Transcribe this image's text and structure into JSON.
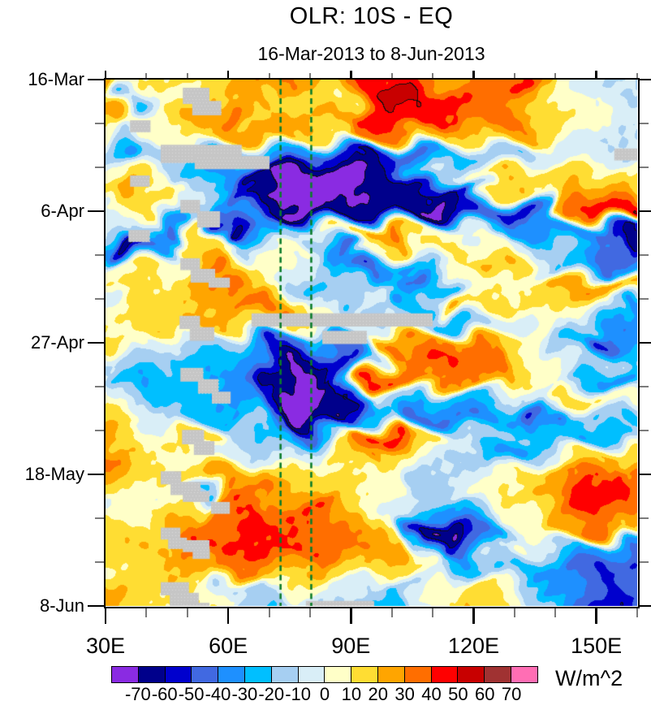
{
  "title": "OLR: 10S - EQ",
  "subtitle": "16-Mar-2013 to 8-Jun-2013",
  "colorbar": {
    "units": "W/m^2",
    "tick_labels": [
      "-70",
      "-60",
      "-50",
      "-40",
      "-30",
      "-20",
      "-10",
      "0",
      "10",
      "20",
      "30",
      "40",
      "50",
      "60",
      "70"
    ],
    "colors": [
      "#8A2BE2",
      "#00008B",
      "#0000CD",
      "#4169E1",
      "#1E90FF",
      "#00BFFF",
      "#A6CFF2",
      "#D9EEF7",
      "#FFFFC8",
      "#FFDD33",
      "#FFA500",
      "#FF6E00",
      "#FF0000",
      "#C80000",
      "#A03232",
      "#FF6EB4"
    ]
  },
  "x_axis": {
    "min": 30,
    "max": 160,
    "minor_step": 10,
    "major_ticks": [
      30,
      60,
      90,
      120,
      150
    ],
    "major_labels": [
      "30E",
      "60E",
      "90E",
      "120E",
      "150E"
    ]
  },
  "y_axis": {
    "start_day": 0,
    "end_day": 84,
    "minor_step_days": 7,
    "major_ticks_days": [
      0,
      21,
      42,
      63,
      84
    ],
    "major_labels": [
      "16-Mar",
      "6-Apr",
      "27-Apr",
      "18-May",
      "8-Jun"
    ]
  },
  "reference_lines": {
    "color": "#0B7D2B",
    "longitudes": [
      72.8,
      80.3
    ]
  },
  "missing_data": {
    "color": "#C6C6C6",
    "blocks": [
      [
        48.9,
        1.3,
        6.5,
        2.6
      ],
      [
        51.2,
        3.4,
        7.1,
        2.3
      ],
      [
        36.0,
        6.5,
        5.0,
        1.9
      ],
      [
        43.5,
        10.4,
        19.8,
        2.9
      ],
      [
        51.8,
        12.2,
        18.3,
        2.1
      ],
      [
        154.4,
        11.0,
        5.6,
        1.9
      ],
      [
        36.0,
        15.3,
        4.8,
        1.8
      ],
      [
        48.3,
        19.2,
        4.8,
        2.1
      ],
      [
        52.4,
        21.0,
        5.6,
        2.6
      ],
      [
        35.6,
        24.0,
        5.2,
        1.9
      ],
      [
        48.3,
        28.5,
        4.8,
        1.9
      ],
      [
        50.8,
        30.2,
        6.0,
        2.2
      ],
      [
        55.2,
        31.6,
        5.2,
        1.6
      ],
      [
        65.7,
        37.3,
        44.3,
        2.1
      ],
      [
        48.1,
        37.7,
        5.0,
        2.1
      ],
      [
        50.6,
        39.5,
        6.0,
        2.2
      ],
      [
        83.0,
        40.1,
        10.9,
        2.1
      ],
      [
        48.3,
        46.0,
        5.6,
        2.2
      ],
      [
        52.6,
        47.8,
        5.0,
        2.3
      ],
      [
        56.0,
        49.8,
        4.6,
        1.9
      ],
      [
        48.7,
        55.9,
        5.4,
        2.3
      ],
      [
        51.6,
        57.7,
        5.0,
        2.2
      ],
      [
        43.5,
        62.5,
        5.0,
        2.1
      ],
      [
        45.9,
        64.2,
        7.3,
        2.1
      ],
      [
        48.9,
        65.7,
        6.5,
        1.7
      ],
      [
        55.8,
        67.4,
        4.6,
        1.9
      ],
      [
        43.5,
        71.5,
        4.8,
        1.9
      ],
      [
        45.3,
        73.1,
        4.6,
        1.8
      ],
      [
        48.9,
        73.5,
        6.5,
        1.9
      ],
      [
        51.3,
        74.9,
        4.2,
        1.6
      ],
      [
        43.5,
        80.2,
        6.9,
        2.1
      ],
      [
        45.7,
        81.9,
        7.1,
        2.1
      ],
      [
        48.7,
        83.5,
        6.7,
        1.0
      ],
      [
        79.0,
        83.2,
        16.7,
        1.3
      ]
    ]
  },
  "chart_data": {
    "type": "heatmap",
    "title": "OLR: 10S - EQ",
    "subtitle": "16-Mar-2013 to 8-Jun-2013",
    "units": "W/m^2",
    "x_range_deg_east": [
      30,
      160
    ],
    "y_range": [
      "16-Mar-2013",
      "8-Jun-2013"
    ],
    "contour_levels": [
      -70,
      -60,
      -50,
      -40,
      -30,
      -20,
      -10,
      0,
      10,
      20,
      30,
      40,
      50,
      60,
      70
    ],
    "grid": {
      "cols": 23,
      "rows": 29,
      "lon_start": 30,
      "lon_end": 160,
      "day_start": 0,
      "day_end": 84,
      "values": [
        [
          25,
          15,
          10,
          15,
          15,
          15,
          25,
          32,
          25,
          15,
          25,
          45,
          42,
          30,
          25,
          25,
          35,
          42,
          25,
          5,
          -5,
          -10,
          -15
        ],
        [
          35,
          -25,
          -5,
          5,
          10,
          20,
          28,
          15,
          15,
          12,
          10,
          48,
          55,
          50,
          45,
          40,
          35,
          30,
          15,
          8,
          0,
          -5,
          -12
        ],
        [
          25,
          5,
          5,
          15,
          25,
          35,
          15,
          25,
          25,
          20,
          30,
          45,
          52,
          45,
          40,
          35,
          40,
          35,
          20,
          10,
          5,
          0,
          -5
        ],
        [
          5,
          -15,
          5,
          10,
          20,
          25,
          25,
          25,
          15,
          12,
          10,
          35,
          30,
          20,
          20,
          15,
          20,
          25,
          15,
          5,
          -5,
          -10,
          -10
        ],
        [
          -5,
          -35,
          -15,
          -15,
          -25,
          -25,
          -25,
          -30,
          -35,
          -45,
          -55,
          -62,
          -55,
          -40,
          -30,
          -20,
          -15,
          -20,
          -10,
          -5,
          -5,
          -5,
          -10
        ],
        [
          5,
          15,
          5,
          -15,
          -25,
          -35,
          -65,
          -75,
          -75,
          -75,
          -75,
          -65,
          -45,
          -25,
          -10,
          5,
          15,
          20,
          15,
          15,
          10,
          15,
          10
        ],
        [
          15,
          25,
          15,
          5,
          -15,
          -25,
          -55,
          -75,
          -78,
          -75,
          -72,
          -72,
          -65,
          -60,
          -70,
          -60,
          15,
          20,
          10,
          25,
          35,
          25,
          15
        ],
        [
          -5,
          5,
          15,
          -15,
          -15,
          -45,
          -35,
          -55,
          -75,
          -70,
          -65,
          -65,
          -65,
          -70,
          -75,
          -60,
          -45,
          -55,
          -35,
          25,
          45,
          45,
          50
        ],
        [
          -5,
          -15,
          -35,
          -45,
          15,
          -65,
          -35,
          -35,
          -15,
          -5,
          15,
          25,
          35,
          15,
          5,
          -5,
          -25,
          -35,
          -35,
          -35,
          -40,
          -50,
          -60
        ],
        [
          -35,
          -65,
          -35,
          15,
          15,
          5,
          -15,
          5,
          5,
          -35,
          -45,
          5,
          20,
          5,
          15,
          15,
          5,
          -5,
          -15,
          -15,
          -25,
          -45,
          -65
        ],
        [
          -5,
          5,
          15,
          5,
          30,
          35,
          15,
          5,
          -5,
          -10,
          -25,
          -50,
          -35,
          -20,
          -5,
          5,
          25,
          15,
          -5,
          -20,
          -25,
          -45,
          -30
        ],
        [
          10,
          15,
          10,
          10,
          25,
          30,
          15,
          5,
          -10,
          -25,
          -15,
          -5,
          -15,
          -45,
          -25,
          5,
          10,
          5,
          10,
          25,
          30,
          25,
          20
        ],
        [
          -5,
          10,
          15,
          15,
          20,
          25,
          35,
          30,
          15,
          -10,
          -20,
          -10,
          -35,
          -25,
          25,
          10,
          15,
          10,
          15,
          10,
          5,
          -15,
          -35
        ],
        [
          5,
          10,
          15,
          20,
          25,
          20,
          15,
          10,
          10,
          5,
          0,
          -5,
          -10,
          -15,
          -25,
          -30,
          -15,
          -5,
          5,
          -5,
          -15,
          -30,
          -35
        ],
        [
          15,
          5,
          -5,
          -5,
          -15,
          -15,
          -35,
          -55,
          -45,
          -30,
          -45,
          25,
          35,
          25,
          30,
          35,
          25,
          15,
          5,
          -15,
          -55,
          -45,
          -35
        ],
        [
          -10,
          -15,
          -15,
          -30,
          -25,
          -25,
          -35,
          -60,
          -70,
          -55,
          -50,
          -10,
          25,
          35,
          42,
          35,
          35,
          15,
          5,
          -5,
          -15,
          -10,
          -20
        ],
        [
          -10,
          -25,
          -30,
          -25,
          -30,
          -30,
          -35,
          -65,
          -75,
          -60,
          -30,
          42,
          40,
          30,
          30,
          30,
          30,
          10,
          5,
          -5,
          -25,
          -35,
          -25
        ],
        [
          5,
          -10,
          -25,
          -25,
          -25,
          -30,
          -35,
          -55,
          -75,
          -75,
          -60,
          -10,
          -10,
          -30,
          -25,
          -25,
          -20,
          -10,
          -5,
          15,
          10,
          5,
          5
        ],
        [
          15,
          10,
          -10,
          -15,
          -25,
          -30,
          -15,
          -45,
          -75,
          -70,
          -55,
          -25,
          -20,
          -45,
          -40,
          -40,
          -30,
          -30,
          -50,
          -25,
          -20,
          -15,
          -25
        ],
        [
          25,
          15,
          5,
          15,
          15,
          10,
          -15,
          -25,
          -45,
          -20,
          5,
          40,
          42,
          15,
          5,
          -5,
          -15,
          -20,
          -25,
          -25,
          -30,
          -25,
          -15
        ],
        [
          35,
          20,
          10,
          5,
          5,
          -5,
          -10,
          -10,
          -10,
          -5,
          15,
          30,
          15,
          5,
          -10,
          -15,
          -25,
          -35,
          -15,
          -5,
          15,
          25,
          15
        ],
        [
          25,
          15,
          10,
          15,
          15,
          30,
          25,
          10,
          10,
          15,
          10,
          5,
          5,
          -15,
          -10,
          -5,
          5,
          5,
          15,
          30,
          40,
          40,
          30
        ],
        [
          15,
          10,
          5,
          -10,
          -20,
          30,
          40,
          25,
          25,
          15,
          15,
          10,
          5,
          -15,
          -15,
          -5,
          10,
          15,
          25,
          35,
          45,
          45,
          35
        ],
        [
          -5,
          5,
          10,
          15,
          10,
          35,
          40,
          30,
          40,
          40,
          25,
          5,
          -5,
          -25,
          -35,
          -30,
          -15,
          5,
          15,
          25,
          40,
          40,
          30
        ],
        [
          15,
          15,
          15,
          25,
          30,
          40,
          45,
          40,
          40,
          35,
          30,
          25,
          10,
          -55,
          -70,
          -45,
          -35,
          -15,
          5,
          25,
          35,
          30,
          20
        ],
        [
          15,
          20,
          20,
          30,
          40,
          45,
          40,
          45,
          40,
          35,
          35,
          30,
          25,
          -20,
          -60,
          -45,
          -10,
          5,
          -10,
          -20,
          -30,
          -35,
          -40
        ],
        [
          5,
          10,
          15,
          20,
          25,
          35,
          30,
          25,
          20,
          25,
          15,
          20,
          15,
          5,
          -10,
          -25,
          -15,
          -25,
          -35,
          -30,
          -45,
          -55,
          -45
        ],
        [
          20,
          15,
          10,
          15,
          10,
          -10,
          -15,
          5,
          10,
          5,
          -5,
          -15,
          -25,
          -10,
          5,
          15,
          10,
          5,
          -15,
          -35,
          -45,
          -55,
          -45
        ],
        [
          25,
          15,
          10,
          15,
          10,
          5,
          -15,
          -25,
          -5,
          -10,
          -10,
          -25,
          -30,
          -5,
          10,
          20,
          15,
          5,
          -15,
          -40,
          -50,
          -60,
          -50
        ]
      ]
    }
  }
}
